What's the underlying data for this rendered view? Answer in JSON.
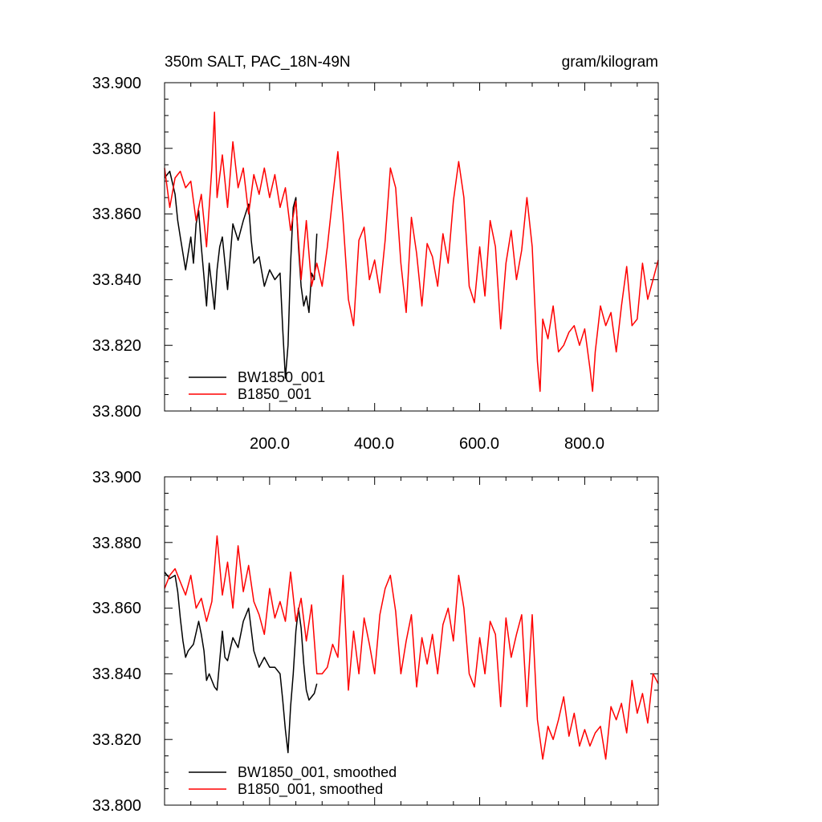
{
  "chart_data": [
    {
      "type": "line",
      "title": "350m SALT, PAC_18N-49N",
      "units": "gram/kilogram",
      "xlim": [
        0,
        940
      ],
      "ylim": [
        33.8,
        33.9
      ],
      "yticks": [
        "33.900",
        "33.880",
        "33.860",
        "33.840",
        "33.820",
        "33.800"
      ],
      "xticks": [
        "200.0",
        "400.0",
        "600.0",
        "800.0"
      ],
      "xtick_values": [
        200,
        400,
        600,
        800
      ],
      "legend_position": "bottom-left",
      "series": [
        {
          "name": "BW1850_001",
          "color": "#000000",
          "x": [
            0,
            10,
            20,
            25,
            30,
            40,
            45,
            50,
            55,
            60,
            65,
            70,
            80,
            85,
            90,
            95,
            100,
            105,
            110,
            120,
            130,
            140,
            150,
            160,
            165,
            170,
            180,
            190,
            200,
            210,
            220,
            225,
            230,
            235,
            240,
            245,
            250,
            255,
            260,
            265,
            270,
            275,
            280,
            285,
            290
          ],
          "values": [
            33.871,
            33.873,
            33.866,
            33.858,
            33.853,
            33.843,
            33.848,
            33.853,
            33.845,
            33.857,
            33.861,
            33.85,
            33.832,
            33.845,
            33.838,
            33.831,
            33.843,
            33.85,
            33.853,
            33.837,
            33.857,
            33.852,
            33.858,
            33.863,
            33.852,
            33.845,
            33.847,
            33.838,
            33.843,
            33.84,
            33.842,
            33.825,
            33.81,
            33.82,
            33.845,
            33.862,
            33.865,
            33.85,
            33.838,
            33.832,
            33.835,
            33.83,
            33.842,
            33.84,
            33.854
          ]
        },
        {
          "name": "B1850_001",
          "color": "#ff0000",
          "x": [
            0,
            10,
            20,
            30,
            40,
            50,
            60,
            70,
            80,
            90,
            95,
            100,
            110,
            120,
            130,
            140,
            150,
            160,
            170,
            180,
            190,
            200,
            210,
            220,
            230,
            240,
            250,
            260,
            270,
            280,
            290,
            300,
            310,
            320,
            330,
            340,
            350,
            360,
            370,
            380,
            390,
            400,
            410,
            420,
            430,
            440,
            450,
            460,
            470,
            480,
            490,
            500,
            510,
            520,
            530,
            540,
            550,
            560,
            570,
            580,
            590,
            600,
            610,
            620,
            630,
            640,
            650,
            660,
            670,
            680,
            690,
            700,
            710,
            715,
            720,
            730,
            740,
            750,
            760,
            770,
            780,
            790,
            800,
            810,
            815,
            820,
            830,
            840,
            850,
            860,
            870,
            880,
            890,
            900,
            910,
            920,
            930,
            940
          ],
          "values": [
            33.874,
            33.862,
            33.871,
            33.873,
            33.868,
            33.87,
            33.858,
            33.866,
            33.85,
            33.874,
            33.891,
            33.865,
            33.878,
            33.862,
            33.882,
            33.868,
            33.874,
            33.86,
            33.872,
            33.866,
            33.874,
            33.865,
            33.872,
            33.862,
            33.868,
            33.855,
            33.864,
            33.84,
            33.858,
            33.838,
            33.845,
            33.838,
            33.85,
            33.865,
            33.879,
            33.858,
            33.834,
            33.826,
            33.852,
            33.856,
            33.84,
            33.846,
            33.836,
            33.852,
            33.874,
            33.868,
            33.845,
            33.83,
            33.859,
            33.848,
            33.832,
            33.851,
            33.847,
            33.838,
            33.854,
            33.845,
            33.864,
            33.876,
            33.865,
            33.838,
            33.833,
            33.85,
            33.835,
            33.858,
            33.85,
            33.825,
            33.845,
            33.855,
            33.84,
            33.849,
            33.865,
            33.85,
            33.815,
            33.806,
            33.828,
            33.822,
            33.832,
            33.818,
            33.82,
            33.824,
            33.826,
            33.82,
            33.825,
            33.813,
            33.806,
            33.818,
            33.832,
            33.826,
            33.83,
            33.818,
            33.832,
            33.844,
            33.826,
            33.828,
            33.845,
            33.834,
            33.84,
            33.846
          ]
        }
      ]
    },
    {
      "type": "line",
      "title": "",
      "xlim": [
        0,
        940
      ],
      "ylim": [
        33.8,
        33.9
      ],
      "yticks": [
        "33.900",
        "33.880",
        "33.860",
        "33.840",
        "33.820",
        "33.800"
      ],
      "xticks": [],
      "xtick_values": [
        200,
        400,
        600,
        800
      ],
      "legend_position": "bottom-left",
      "series": [
        {
          "name": "BW1850_001, smoothed",
          "color": "#000000",
          "x": [
            0,
            10,
            20,
            25,
            30,
            35,
            40,
            45,
            55,
            65,
            70,
            75,
            80,
            85,
            90,
            95,
            100,
            110,
            115,
            120,
            130,
            140,
            150,
            160,
            170,
            180,
            190,
            200,
            210,
            220,
            225,
            230,
            235,
            240,
            245,
            250,
            255,
            260,
            265,
            270,
            275,
            280,
            285,
            290
          ],
          "values": [
            33.871,
            33.869,
            33.87,
            33.865,
            33.857,
            33.85,
            33.845,
            33.847,
            33.849,
            33.856,
            33.852,
            33.847,
            33.838,
            33.84,
            33.838,
            33.836,
            33.835,
            33.853,
            33.845,
            33.844,
            33.851,
            33.848,
            33.856,
            33.86,
            33.847,
            33.842,
            33.845,
            33.842,
            33.842,
            33.84,
            33.832,
            33.823,
            33.816,
            33.83,
            33.84,
            33.853,
            33.86,
            33.854,
            33.843,
            33.835,
            33.832,
            33.833,
            33.834,
            33.837
          ]
        },
        {
          "name": "B1850_001, smoothed",
          "color": "#ff0000",
          "x": [
            0,
            10,
            20,
            30,
            40,
            50,
            60,
            70,
            80,
            90,
            100,
            110,
            120,
            130,
            140,
            150,
            160,
            170,
            180,
            190,
            200,
            210,
            220,
            230,
            240,
            250,
            260,
            270,
            280,
            290,
            300,
            310,
            320,
            330,
            340,
            350,
            360,
            370,
            380,
            390,
            400,
            410,
            420,
            430,
            440,
            450,
            460,
            470,
            480,
            490,
            500,
            510,
            520,
            530,
            540,
            550,
            560,
            570,
            580,
            590,
            600,
            610,
            620,
            630,
            640,
            650,
            660,
            670,
            680,
            690,
            700,
            710,
            720,
            730,
            740,
            750,
            760,
            770,
            780,
            790,
            800,
            810,
            820,
            830,
            840,
            850,
            860,
            870,
            880,
            890,
            900,
            910,
            920,
            930,
            940
          ],
          "values": [
            33.866,
            33.87,
            33.872,
            33.868,
            33.864,
            33.87,
            33.86,
            33.863,
            33.856,
            33.862,
            33.882,
            33.864,
            33.874,
            33.86,
            33.879,
            33.865,
            33.873,
            33.862,
            33.858,
            33.852,
            33.866,
            33.857,
            33.862,
            33.856,
            33.871,
            33.856,
            33.863,
            33.85,
            33.861,
            33.84,
            33.84,
            33.842,
            33.849,
            33.845,
            33.87,
            33.835,
            33.853,
            33.84,
            33.857,
            33.849,
            33.84,
            33.858,
            33.866,
            33.87,
            33.859,
            33.84,
            33.85,
            33.858,
            33.836,
            33.851,
            33.843,
            33.852,
            33.84,
            33.855,
            33.86,
            33.85,
            33.87,
            33.86,
            33.84,
            33.836,
            33.851,
            33.84,
            33.856,
            33.852,
            33.83,
            33.857,
            33.845,
            33.852,
            33.858,
            33.83,
            33.858,
            33.826,
            33.814,
            33.824,
            33.82,
            33.826,
            33.833,
            33.821,
            33.828,
            33.818,
            33.823,
            33.818,
            33.822,
            33.824,
            33.814,
            33.83,
            33.826,
            33.831,
            33.822,
            33.838,
            33.828,
            33.834,
            33.825,
            33.84,
            33.837
          ]
        }
      ]
    }
  ]
}
